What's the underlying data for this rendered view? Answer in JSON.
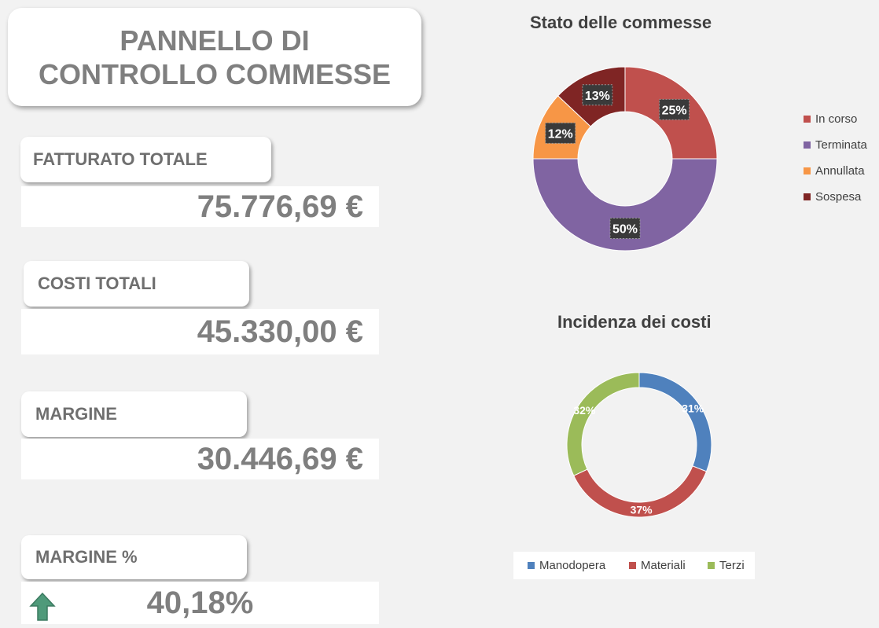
{
  "title": "PANNELLO DI CONTROLLO COMMESSE",
  "kpis": {
    "fatturato": {
      "label": "FATTURATO TOTALE",
      "value": "75.776,69 €"
    },
    "costi": {
      "label": "COSTI TOTALI",
      "value": "45.330,00 €"
    },
    "margine": {
      "label": "MARGINE",
      "value": "30.446,69 €"
    },
    "margine_pct": {
      "label": "MARGINE %",
      "value": "40,18%",
      "trend_icon": "arrow-up-icon",
      "trend_color": "#4f9a7a"
    }
  },
  "chart_data": [
    {
      "type": "pie",
      "title": "Stato delle commesse",
      "categories": [
        "In corso",
        "Terminata",
        "Annullata",
        "Sospesa"
      ],
      "values": [
        25,
        50,
        12,
        13
      ],
      "data_labels": [
        "25%",
        "50%",
        "12%",
        "13%"
      ],
      "colors": [
        "#c0504d",
        "#8064a2",
        "#f79646",
        "#7f2524"
      ],
      "legend_position": "right"
    },
    {
      "type": "pie",
      "title": "Incidenza dei costi",
      "categories": [
        "Manodopera",
        "Materiali",
        "Terzi"
      ],
      "values": [
        31,
        37,
        32
      ],
      "data_labels": [
        "31%",
        "37%",
        "32%"
      ],
      "colors": [
        "#4f81bd",
        "#c0504d",
        "#9bbb59"
      ],
      "legend_position": "bottom"
    }
  ]
}
